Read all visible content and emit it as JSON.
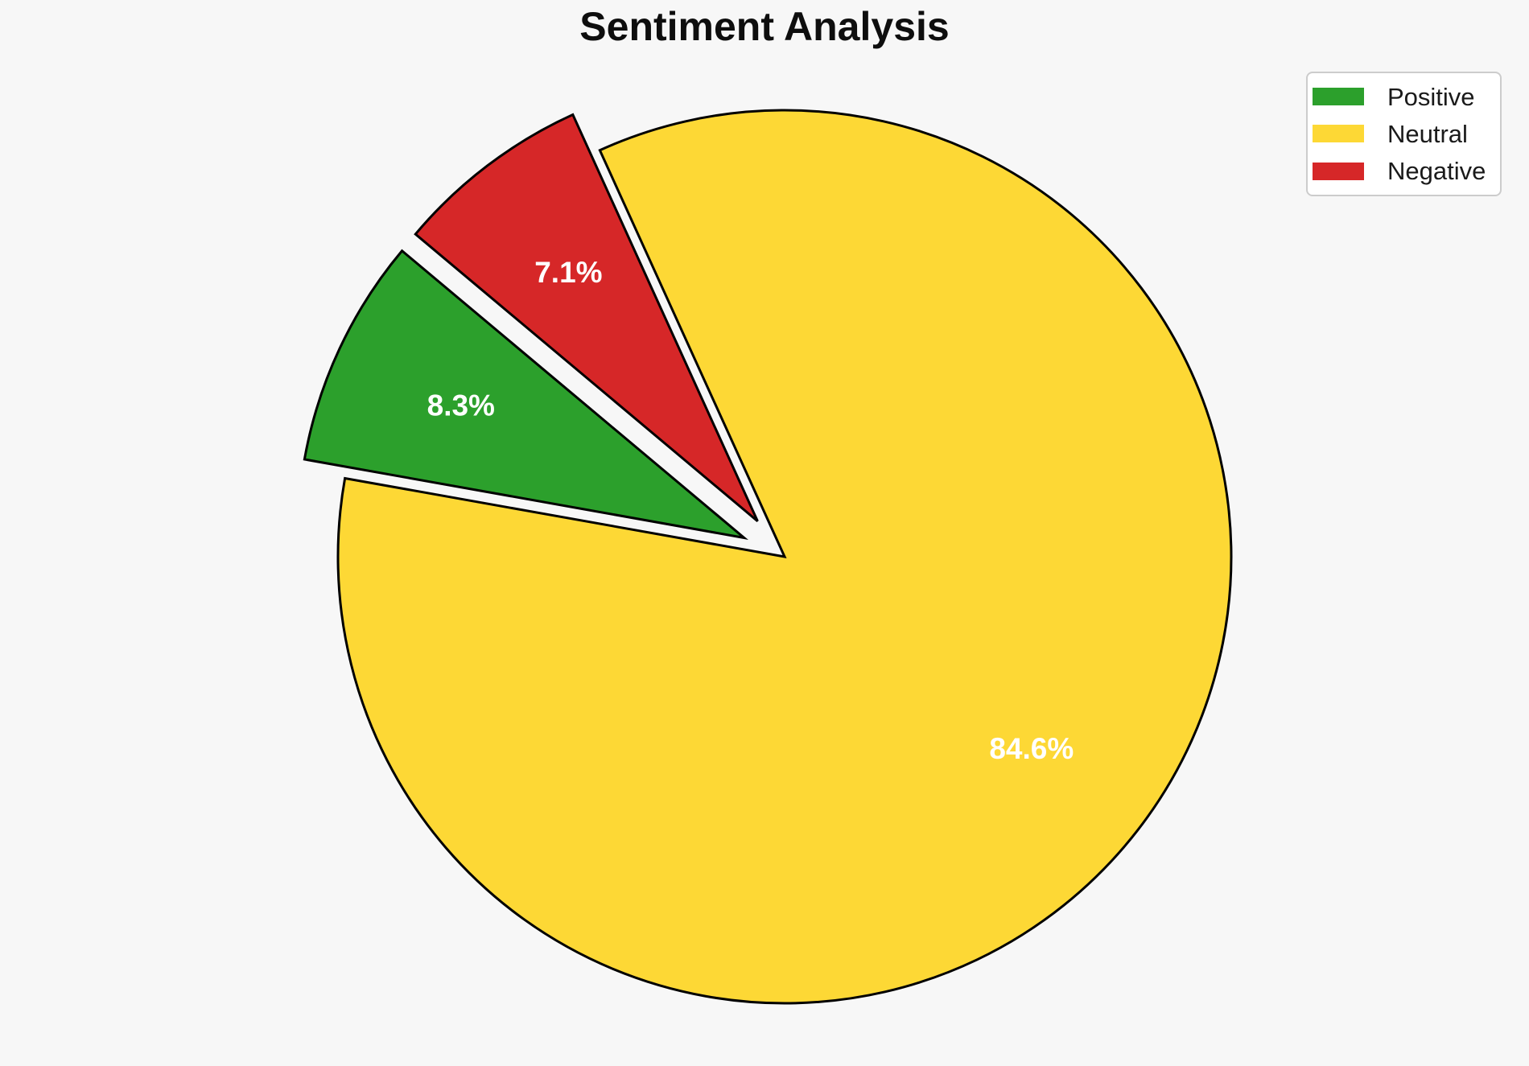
{
  "title": "Sentiment Analysis",
  "background_color": "#f7f7f7",
  "chart_data": {
    "type": "pie",
    "title": "Sentiment Analysis",
    "categories": [
      "Positive",
      "Neutral",
      "Negative"
    ],
    "values": [
      8.3,
      84.6,
      7.1
    ],
    "slice_labels": [
      "8.3%",
      "84.6%",
      "7.1%"
    ],
    "colors": [
      "#2ca02c",
      "#fdd835",
      "#d62728"
    ],
    "explode": [
      0.1,
      0,
      0.1
    ],
    "start_angle_deg": 140,
    "direction": "counterclockwise",
    "pct_label_distance": 0.7,
    "slice_edge_color": "#000000",
    "slice_edge_width": 3,
    "slice_label_color": "#ffffff",
    "legend": {
      "position": "upper-right",
      "entries": [
        "Positive",
        "Neutral",
        "Negative"
      ]
    }
  }
}
